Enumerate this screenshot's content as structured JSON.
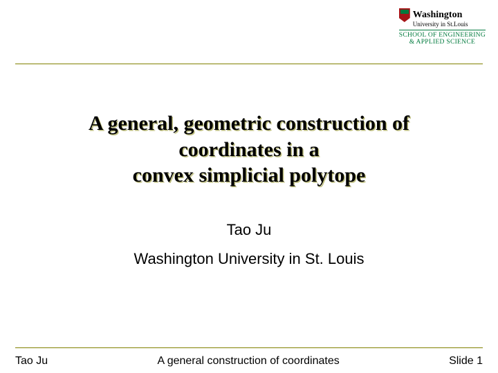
{
  "logo": {
    "university": "Washington",
    "subline": "University in St.Louis",
    "school_line1": "SCHOOL OF ENGINEERING",
    "school_line2": "& APPLIED SCIENCE"
  },
  "title": {
    "line1": "A general, geometric construction of",
    "line2": "coordinates in a",
    "line3": "convex simplicial polytope"
  },
  "author": "Tao Ju",
  "affiliation": "Washington University in St. Louis",
  "footer": {
    "left": "Tao Ju",
    "center": "A general construction of coordinates",
    "right": "Slide 1"
  },
  "colors": {
    "rule": "#808000",
    "title_shadow": "#c0c080",
    "school_green": "#007a3d",
    "shield_red": "#a51417"
  }
}
